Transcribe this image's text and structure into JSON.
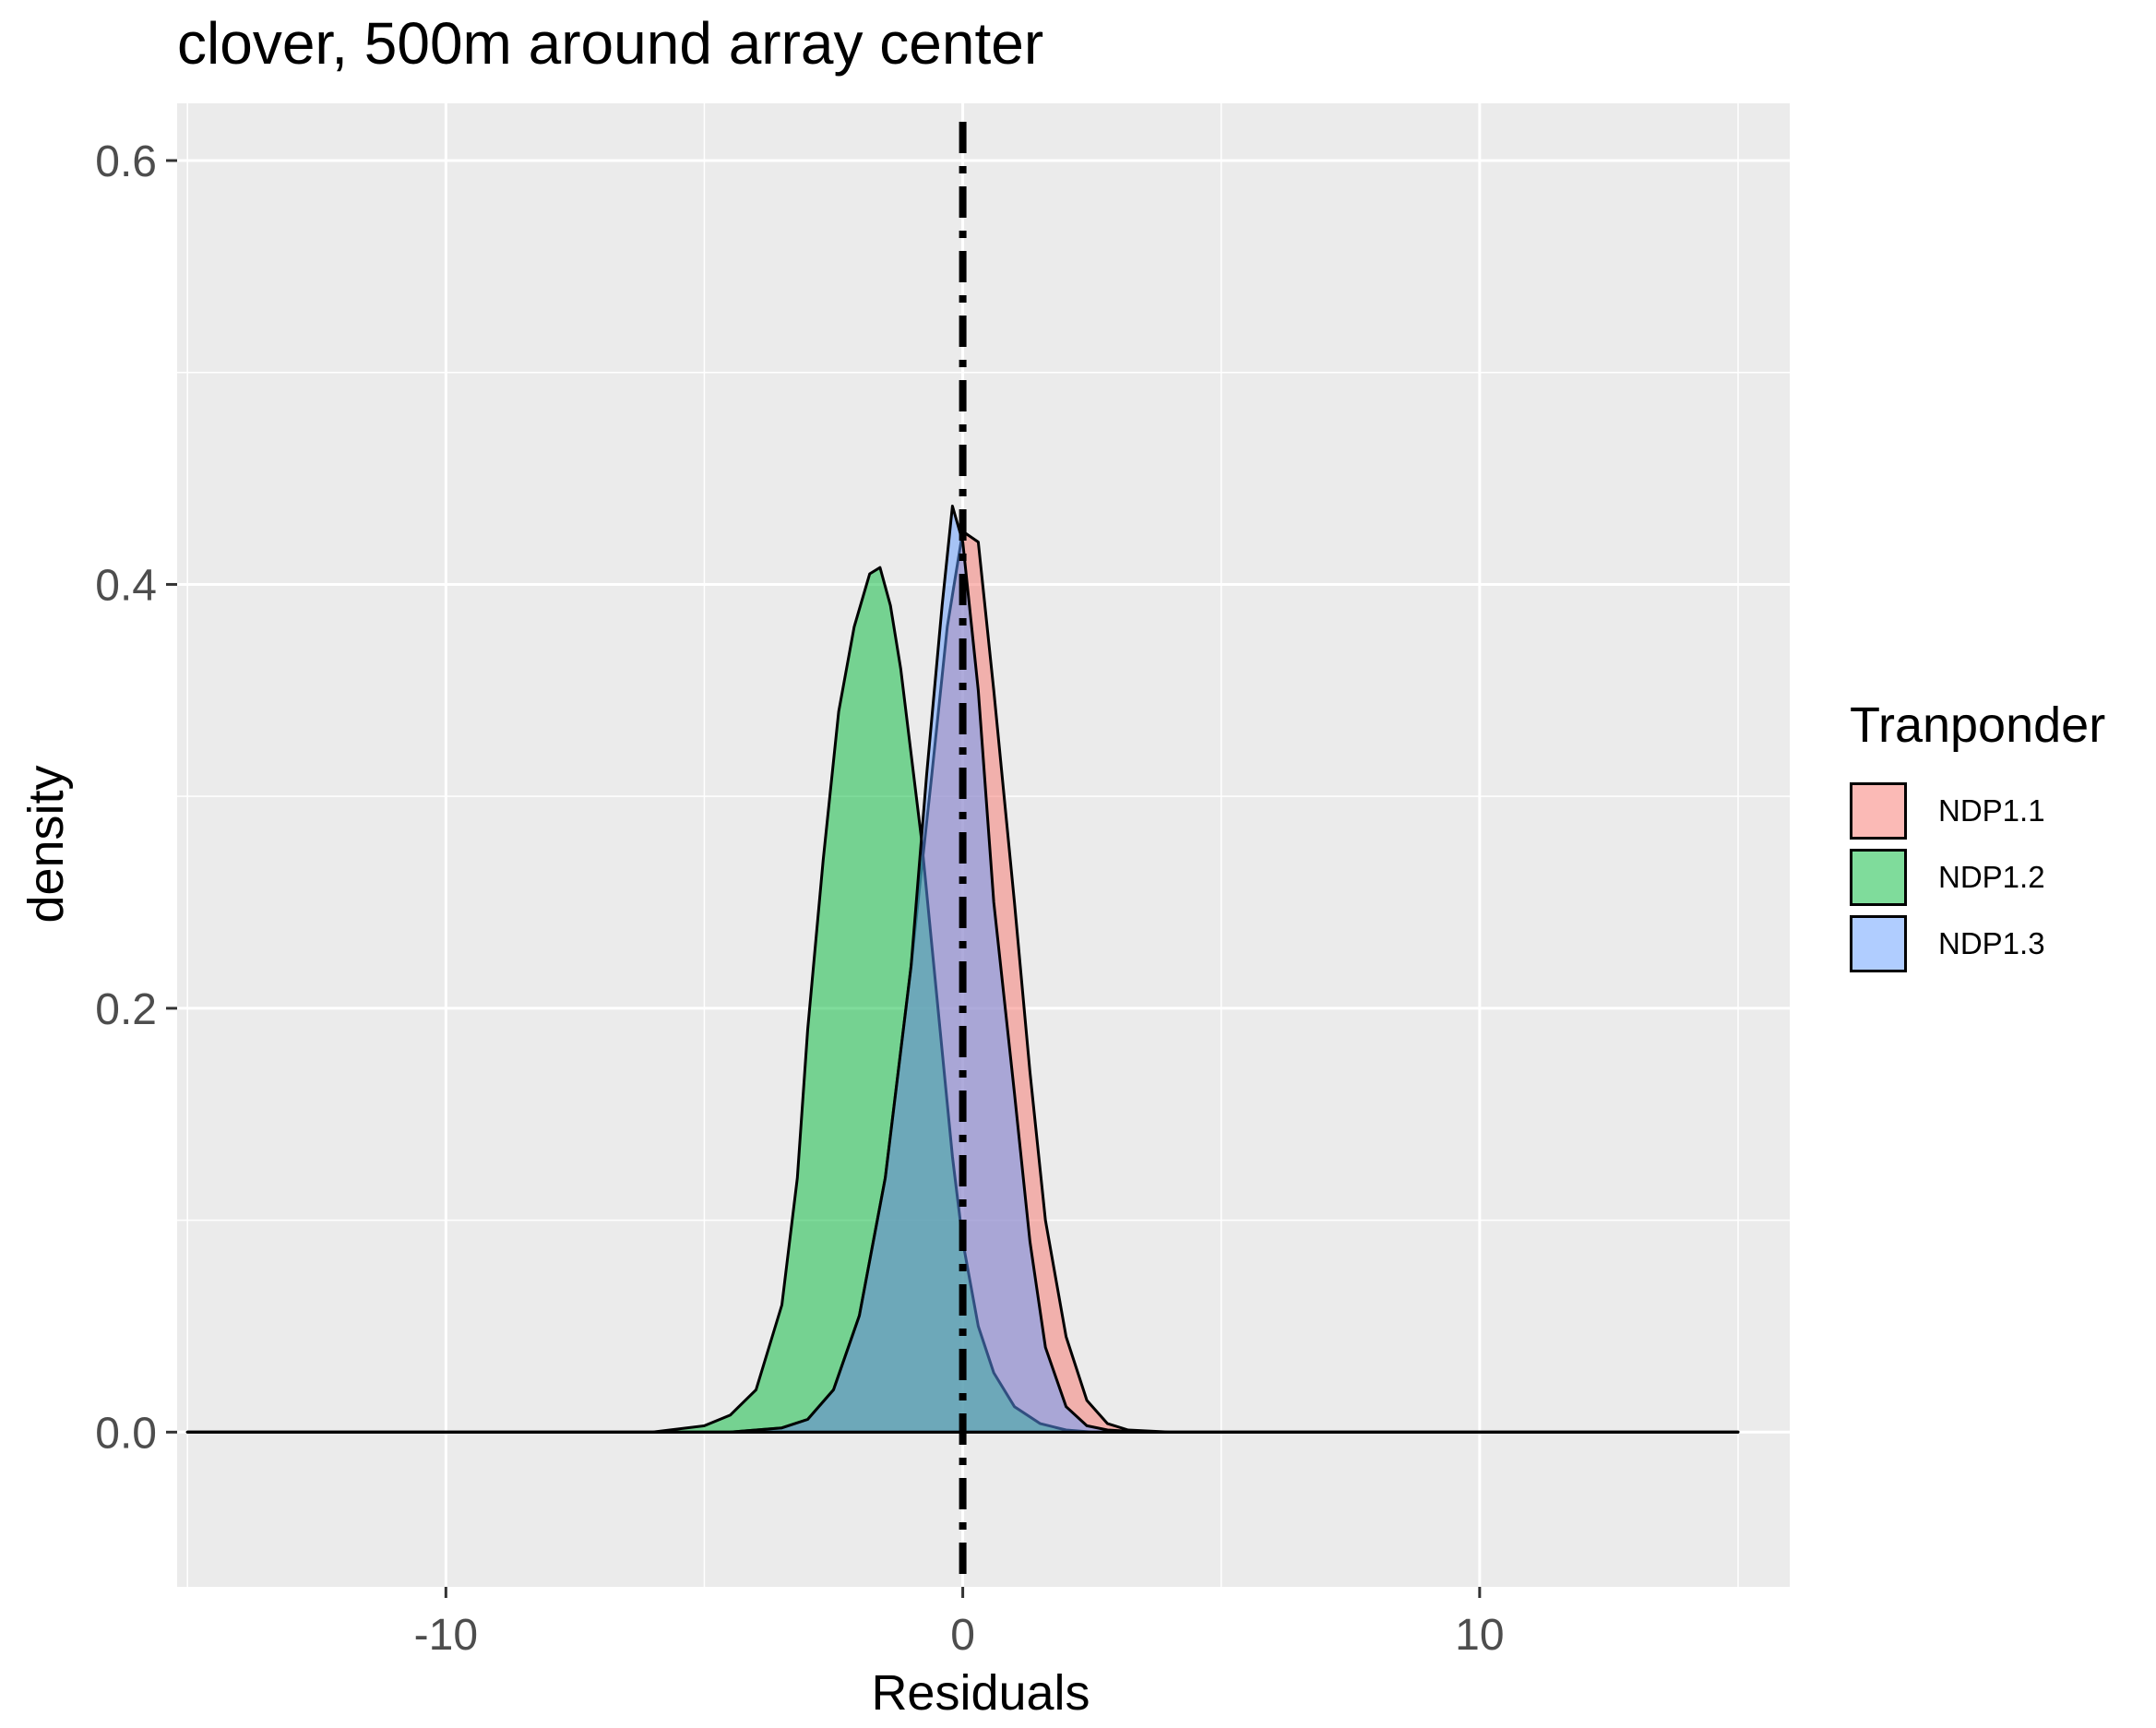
{
  "chart_data": {
    "type": "area",
    "title": "clover, 500m around array center",
    "xlabel": "Residuals",
    "ylabel": "density",
    "xlim": [
      -15.2,
      16
    ],
    "ylim": [
      -0.073,
      0.627
    ],
    "x_ticks": [
      -10,
      0,
      10
    ],
    "x_tick_labels": [
      "-10",
      "0",
      "10"
    ],
    "y_ticks": [
      0.0,
      0.2,
      0.4,
      0.6
    ],
    "y_tick_labels": [
      "0.0",
      "0.2",
      "0.4",
      "0.6"
    ],
    "grid": true,
    "legend": {
      "title": "Tranponder",
      "position": "right"
    },
    "reference_line": {
      "x": 0,
      "style": "dot-dash",
      "color": "#000000"
    },
    "series": [
      {
        "name": "NDP1.1",
        "fill": "#F8766D",
        "x": [
          -15,
          -4.5,
          -3.5,
          -3.0,
          -2.5,
          -2.0,
          -1.5,
          -1.0,
          -0.6,
          -0.3,
          0.0,
          0.3,
          0.6,
          1.0,
          1.3,
          1.6,
          2.0,
          2.4,
          2.8,
          3.2,
          4.0,
          15
        ],
        "y": [
          0.0,
          0.0,
          0.002,
          0.006,
          0.02,
          0.055,
          0.12,
          0.22,
          0.31,
          0.38,
          0.425,
          0.42,
          0.35,
          0.25,
          0.17,
          0.1,
          0.045,
          0.015,
          0.004,
          0.001,
          0.0,
          0.0
        ]
      },
      {
        "name": "NDP1.2",
        "fill": "#00BA38",
        "x": [
          -15,
          -6.0,
          -5.0,
          -4.5,
          -4.0,
          -3.5,
          -3.2,
          -3.0,
          -2.7,
          -2.4,
          -2.1,
          -1.8,
          -1.6,
          -1.4,
          -1.2,
          -1.0,
          -0.8,
          -0.6,
          -0.4,
          -0.2,
          0.0,
          0.3,
          0.6,
          1.0,
          1.5,
          2.0,
          2.5,
          3.0,
          15
        ],
        "y": [
          0.0,
          0.0,
          0.003,
          0.008,
          0.02,
          0.06,
          0.12,
          0.19,
          0.27,
          0.34,
          0.38,
          0.405,
          0.408,
          0.39,
          0.36,
          0.32,
          0.28,
          0.23,
          0.18,
          0.13,
          0.09,
          0.05,
          0.028,
          0.012,
          0.004,
          0.001,
          0.0,
          0.0,
          0.0
        ]
      },
      {
        "name": "NDP1.3",
        "fill": "#619CFF",
        "x": [
          -15,
          -4.5,
          -3.5,
          -3.0,
          -2.5,
          -2.0,
          -1.5,
          -1.0,
          -0.7,
          -0.4,
          -0.2,
          0.0,
          0.3,
          0.6,
          1.0,
          1.3,
          1.6,
          2.0,
          2.4,
          2.8,
          3.5,
          15
        ],
        "y": [
          0.0,
          0.0,
          0.002,
          0.006,
          0.02,
          0.055,
          0.12,
          0.22,
          0.31,
          0.39,
          0.437,
          0.42,
          0.35,
          0.25,
          0.16,
          0.09,
          0.04,
          0.012,
          0.003,
          0.001,
          0.0,
          0.0
        ]
      }
    ]
  }
}
